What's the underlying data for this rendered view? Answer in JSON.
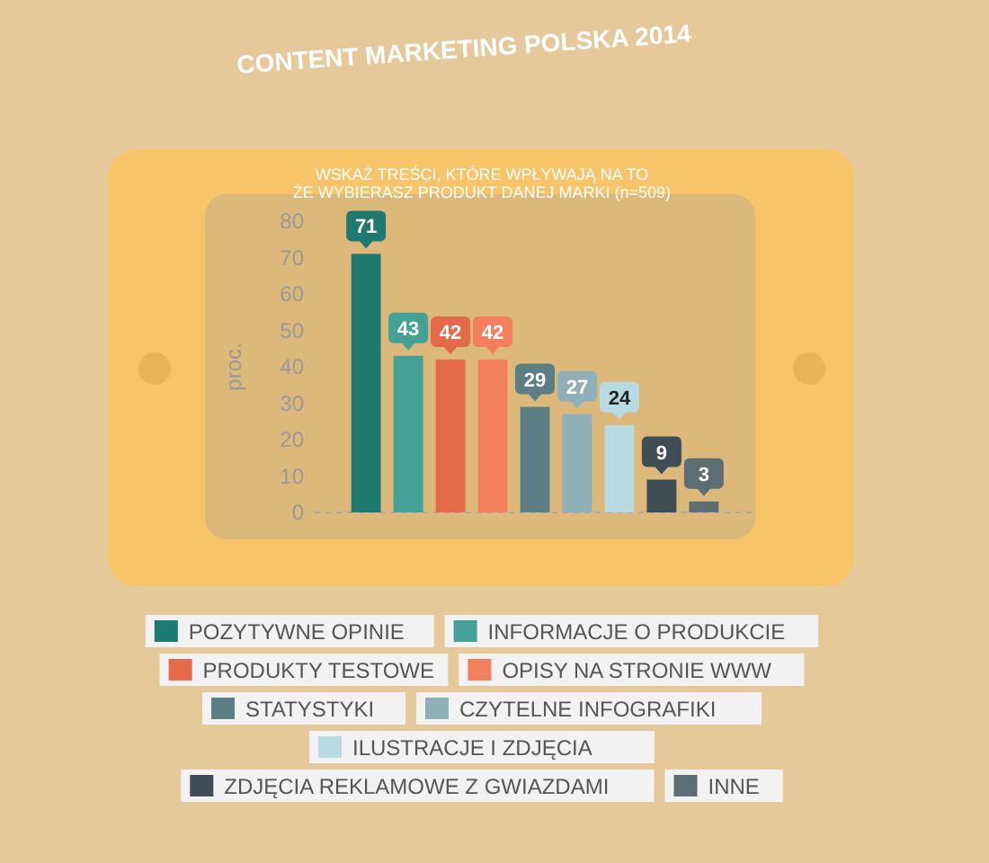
{
  "chart_data": {
    "type": "bar",
    "title": "CONTENT MARKETING POLSKA 2014",
    "subtitle": "WSKAŻ TREŚCI, KTÓRE WPŁYWAJĄ NA TO\nŻE WYBIERASZ PRODUKT DANEJ MARKI  (n=509)",
    "ylabel": "proc.",
    "categories": [
      null,
      null,
      null,
      null,
      null,
      null,
      null,
      null,
      null
    ],
    "series": [
      {
        "name": "POZYTYWNE OPINIE",
        "color": "#1e7a6e",
        "values": [
          71,
          null,
          null,
          null,
          null,
          null,
          null,
          null,
          null
        ]
      },
      {
        "name": "INFORMACJE O PRODUKCIE",
        "color": "#45a096",
        "values": [
          null,
          43,
          null,
          null,
          null,
          null,
          null,
          null,
          null
        ]
      },
      {
        "name": "PRODUKTY TESTOWE",
        "color": "#e5694b",
        "values": [
          null,
          null,
          42,
          null,
          null,
          null,
          null,
          null,
          null
        ]
      },
      {
        "name": "OPISY NA STRONIE WWW",
        "color": "#f47f5f",
        "values": [
          null,
          null,
          null,
          42,
          null,
          null,
          null,
          null,
          null
        ]
      },
      {
        "name": "STATYSTYKI",
        "color": "#5b7f85",
        "values": [
          null,
          null,
          null,
          null,
          29,
          null,
          null,
          null,
          null
        ]
      },
      {
        "name": "CZYTELNE INFOGRAFIKI",
        "color": "#8fb0b6",
        "values": [
          null,
          null,
          null,
          null,
          null,
          27,
          null,
          null,
          null
        ]
      },
      {
        "name": "ILUSTRACJE I ZDJĘCIA",
        "color": "#b8dbe2",
        "values": [
          null,
          null,
          null,
          null,
          null,
          null,
          24,
          null,
          null
        ]
      },
      {
        "name": "ZDJĘCIA REKLAMOWE Z GWIAZDAMI",
        "color": "#3e4e54",
        "values": [
          null,
          null,
          null,
          null,
          null,
          null,
          null,
          9,
          null
        ]
      },
      {
        "name": "INNE",
        "color": "#5c6d73",
        "values": [
          null,
          null,
          null,
          null,
          null,
          null,
          null,
          null,
          3
        ]
      }
    ],
    "ylim": [
      0,
      80
    ],
    "yticks": [
      0,
      10,
      20,
      30,
      40,
      50,
      60,
      70,
      80
    ],
    "stacked": true,
    "data_labels": true,
    "legend": "bottom",
    "grid": false,
    "tick_labels": "y"
  }
}
